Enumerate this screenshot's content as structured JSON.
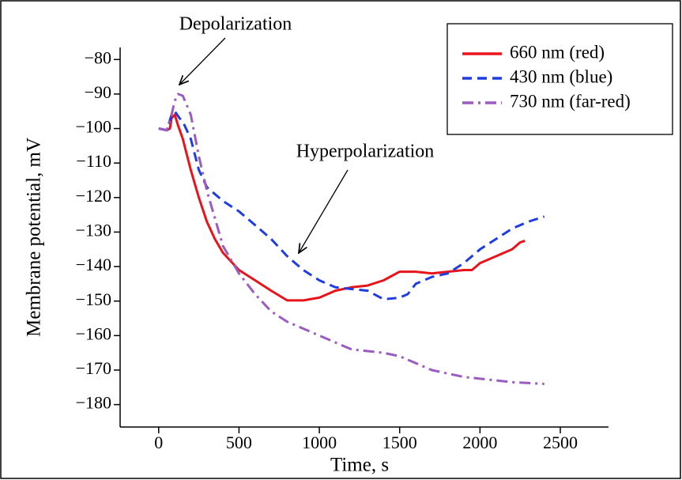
{
  "chart_data": {
    "type": "line",
    "xlabel": "Time, s",
    "ylabel": "Membrane potential, mV",
    "xlim": [
      -240,
      2800
    ],
    "ylim": [
      -186.5,
      -76.5
    ],
    "xticks": [
      0,
      500,
      1000,
      1500,
      2000,
      2500
    ],
    "yticks": [
      {
        "value": -80,
        "label": "−80"
      },
      {
        "value": -90,
        "label": "−90"
      },
      {
        "value": -100,
        "label": "−100"
      },
      {
        "value": -110,
        "label": "−110"
      },
      {
        "value": -120,
        "label": "−120"
      },
      {
        "value": -130,
        "label": "−130"
      },
      {
        "value": -140,
        "label": "−140"
      },
      {
        "value": -150,
        "label": "−150"
      },
      {
        "value": -160,
        "label": "−160"
      },
      {
        "value": -170,
        "label": "−170"
      },
      {
        "value": -180,
        "label": "−180"
      }
    ],
    "legend": "upper right",
    "annotations": [
      {
        "text": "Depolarization"
      },
      {
        "text": "Hyperpolarization"
      }
    ],
    "series": [
      {
        "name": "660 nm (red)",
        "color": "#e8141b",
        "linestyle": "solid",
        "x": [
          0,
          50,
          70,
          80,
          100,
          120,
          150,
          200,
          250,
          300,
          350,
          400,
          500,
          600,
          700,
          800,
          900,
          1000,
          1100,
          1200,
          1300,
          1400,
          1500,
          1600,
          1700,
          1800,
          1900,
          1950,
          2000,
          2100,
          2200,
          2250,
          2280
        ],
        "values": [
          -100,
          -100.5,
          -100,
          -97,
          -96,
          -99,
          -103,
          -112,
          -120,
          -127,
          -132,
          -136,
          -141,
          -144,
          -147,
          -149.8,
          -149.8,
          -149,
          -147,
          -146,
          -145.5,
          -144,
          -141.5,
          -141.5,
          -142,
          -141.5,
          -141,
          -141,
          -139,
          -137,
          -135,
          -133,
          -132.5
        ]
      },
      {
        "name": "430 nm (blue)",
        "color": "#1f3de0",
        "linestyle": "dashed",
        "x": [
          0,
          50,
          80,
          100,
          130,
          150,
          200,
          250,
          300,
          400,
          500,
          600,
          700,
          800,
          900,
          1000,
          1100,
          1200,
          1300,
          1400,
          1500,
          1550,
          1600,
          1700,
          1800,
          1900,
          2000,
          2100,
          2200,
          2300,
          2400
        ],
        "values": [
          -100,
          -100.5,
          -96,
          -95,
          -97,
          -98,
          -103,
          -112,
          -117,
          -121,
          -124,
          -128,
          -132,
          -137,
          -141,
          -144,
          -146,
          -146.5,
          -147,
          -149.5,
          -149,
          -148,
          -145,
          -143,
          -142,
          -139,
          -135,
          -132,
          -129,
          -127,
          -125.5
        ]
      },
      {
        "name": "730 nm (far-red)",
        "color": "#9a5cc0",
        "linestyle": "dashdot",
        "x": [
          0,
          50,
          80,
          100,
          120,
          150,
          200,
          250,
          300,
          400,
          500,
          600,
          700,
          800,
          900,
          1000,
          1100,
          1200,
          1300,
          1400,
          1500,
          1600,
          1700,
          1800,
          1900,
          2000,
          2100,
          2200,
          2400
        ],
        "values": [
          -100,
          -100.5,
          -96,
          -92,
          -90,
          -90.5,
          -96,
          -108,
          -118,
          -134,
          -142,
          -148,
          -153,
          -156,
          -158,
          -160,
          -162,
          -164,
          -164.5,
          -165,
          -166,
          -168,
          -170,
          -171,
          -172,
          -172.5,
          -173,
          -173.5,
          -174
        ]
      }
    ]
  }
}
